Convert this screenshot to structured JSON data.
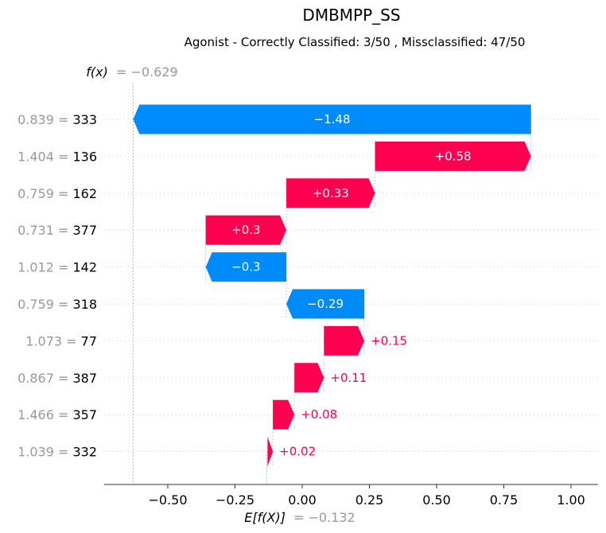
{
  "chart_data": {
    "type": "bar",
    "subtype": "waterfall",
    "title": "DMBMPP_SS",
    "subtitle": "Agonist - Correctly Classified: 3/50 , Missclassified: 47/50",
    "fx_label": "f(x)",
    "fx_value": "= −0.629",
    "efx_label": "E[f(X)]",
    "efx_value": "= −0.132",
    "base_value": -0.132,
    "final_value": -0.629,
    "xlim": [
      -0.74,
      1.1
    ],
    "xticks": [
      -0.5,
      -0.25,
      0.0,
      0.25,
      0.5,
      0.75,
      1.0
    ],
    "xtick_labels": [
      "−0.50",
      "−0.25",
      "0.00",
      "0.25",
      "0.50",
      "0.75",
      "1.00"
    ],
    "colors": {
      "positive": "#ff0051",
      "negative": "#008bfb",
      "text_gray": "#999999",
      "grid": "#cccccc"
    },
    "features": [
      {
        "value": "0.839 =",
        "name": "333",
        "contribution": -1.48,
        "label": "−1.48",
        "start": 0.851,
        "end": -0.629
      },
      {
        "value": "1.404 =",
        "name": "136",
        "contribution": 0.58,
        "label": "+0.58",
        "start": 0.271,
        "end": 0.851
      },
      {
        "value": "0.759 =",
        "name": "162",
        "contribution": 0.33,
        "label": "+0.33",
        "start": -0.059,
        "end": 0.271
      },
      {
        "value": "0.731 =",
        "name": "377",
        "contribution": 0.3,
        "label": "+0.3",
        "start": -0.359,
        "end": -0.059
      },
      {
        "value": "1.012 =",
        "name": "142",
        "contribution": -0.3,
        "label": "−0.3",
        "start": -0.059,
        "end": -0.359
      },
      {
        "value": "0.759 =",
        "name": "318",
        "contribution": -0.29,
        "label": "−0.29",
        "start": 0.231,
        "end": -0.059
      },
      {
        "value": "1.073 =",
        "name": "77",
        "contribution": 0.15,
        "label": "+0.15",
        "start": 0.081,
        "end": 0.231
      },
      {
        "value": "0.867 =",
        "name": "387",
        "contribution": 0.11,
        "label": "+0.11",
        "start": -0.029,
        "end": 0.081
      },
      {
        "value": "1.466 =",
        "name": "357",
        "contribution": 0.08,
        "label": "+0.08",
        "start": -0.109,
        "end": -0.029
      },
      {
        "value": "1.039 =",
        "name": "332",
        "contribution": 0.02,
        "label": "+0.02",
        "start": -0.129,
        "end": -0.109
      }
    ]
  }
}
